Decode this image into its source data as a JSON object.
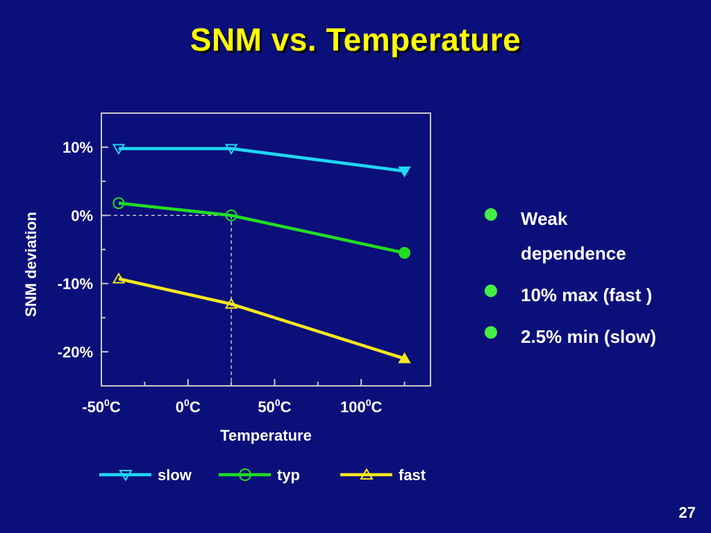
{
  "slide": {
    "title": "SNM vs. Temperature",
    "page_number": "27",
    "background_color": "#0b0f7a",
    "title_color": "#ffff00"
  },
  "bullets": [
    {
      "text": "Weak dependence"
    },
    {
      "text": "10% max (fast )"
    },
    {
      "text": "2.5% min (slow)"
    }
  ],
  "chart_data": {
    "type": "line",
    "title": "",
    "xlabel": "Temperature",
    "ylabel": "SNM deviation",
    "x": [
      -40,
      25,
      125
    ],
    "xlim": [
      -50,
      140
    ],
    "ylim": [
      -25,
      15
    ],
    "x_ticks": [
      -50,
      0,
      50,
      100
    ],
    "x_tick_labels": [
      {
        "base": "-50",
        "sup": "0",
        "unit": "C"
      },
      {
        "base": "0",
        "sup": "0",
        "unit": "C"
      },
      {
        "base": "50",
        "sup": "0",
        "unit": "C"
      },
      {
        "base": "100",
        "sup": "0",
        "unit": "C"
      }
    ],
    "y_ticks": [
      10,
      0,
      -10,
      -20
    ],
    "y_tick_labels": [
      "10%",
      "0%",
      "-10%",
      "-20%"
    ],
    "grid": false,
    "reference_lines": {
      "x": 25,
      "y": 0,
      "style": "dashed"
    },
    "legend": {
      "placement": "bottom"
    },
    "series": [
      {
        "name": "slow",
        "color": "#1ed8f5",
        "marker": "triangle-down",
        "values": [
          9.8,
          9.8,
          6.5
        ]
      },
      {
        "name": "typ",
        "color": "#22dd22",
        "marker": "circle",
        "values": [
          1.8,
          0.0,
          -5.5
        ]
      },
      {
        "name": "fast",
        "color": "#f5e81e",
        "marker": "triangle-up",
        "values": [
          -9.3,
          -13.0,
          -21.0
        ]
      }
    ]
  }
}
